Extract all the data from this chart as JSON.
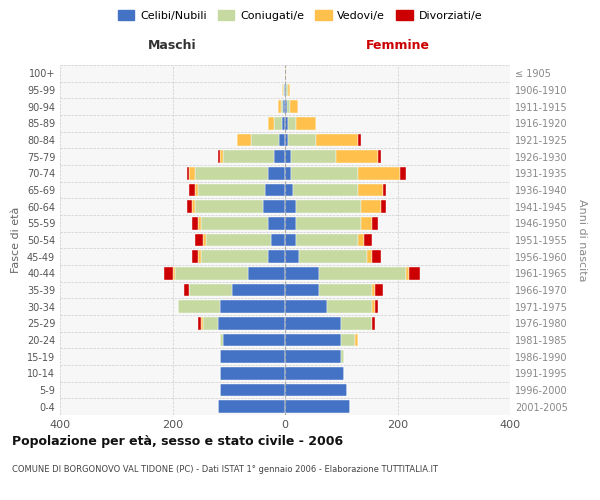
{
  "age_groups": [
    "0-4",
    "5-9",
    "10-14",
    "15-19",
    "20-24",
    "25-29",
    "30-34",
    "35-39",
    "40-44",
    "45-49",
    "50-54",
    "55-59",
    "60-64",
    "65-69",
    "70-74",
    "75-79",
    "80-84",
    "85-89",
    "90-94",
    "95-99",
    "100+"
  ],
  "birth_years": [
    "2001-2005",
    "1996-2000",
    "1991-1995",
    "1986-1990",
    "1981-1985",
    "1976-1980",
    "1971-1975",
    "1966-1970",
    "1961-1965",
    "1956-1960",
    "1951-1955",
    "1946-1950",
    "1941-1945",
    "1936-1940",
    "1931-1935",
    "1926-1930",
    "1921-1925",
    "1916-1920",
    "1911-1915",
    "1906-1910",
    "≤ 1905"
  ],
  "males": {
    "celibi": [
      120,
      115,
      115,
      115,
      110,
      120,
      115,
      95,
      65,
      30,
      25,
      30,
      40,
      35,
      30,
      20,
      10,
      5,
      3,
      2,
      0
    ],
    "coniugati": [
      0,
      0,
      0,
      0,
      5,
      25,
      75,
      75,
      130,
      120,
      115,
      120,
      120,
      120,
      130,
      90,
      50,
      15,
      5,
      2,
      0
    ],
    "vedovi": [
      0,
      0,
      0,
      0,
      0,
      5,
      0,
      0,
      5,
      5,
      5,
      5,
      5,
      5,
      10,
      5,
      25,
      10,
      5,
      2,
      0
    ],
    "divorziati": [
      0,
      0,
      0,
      0,
      0,
      5,
      0,
      10,
      15,
      10,
      15,
      10,
      10,
      10,
      5,
      5,
      0,
      0,
      0,
      0,
      0
    ]
  },
  "females": {
    "nubili": [
      115,
      110,
      105,
      100,
      100,
      100,
      75,
      60,
      60,
      25,
      20,
      20,
      20,
      15,
      10,
      10,
      5,
      5,
      3,
      2,
      0
    ],
    "coniugate": [
      0,
      0,
      0,
      5,
      25,
      55,
      80,
      95,
      155,
      120,
      110,
      115,
      115,
      115,
      120,
      80,
      50,
      15,
      5,
      3,
      0
    ],
    "vedove": [
      0,
      0,
      0,
      0,
      5,
      0,
      5,
      5,
      5,
      10,
      10,
      20,
      35,
      45,
      75,
      75,
      75,
      35,
      15,
      3,
      1
    ],
    "divorziate": [
      0,
      0,
      0,
      0,
      0,
      5,
      5,
      15,
      20,
      15,
      15,
      10,
      10,
      5,
      10,
      5,
      5,
      0,
      0,
      0,
      0
    ]
  },
  "colors": {
    "celibi_nubili": "#4472c4",
    "coniugati_e": "#c5d9a0",
    "vedovi_e": "#ffc04c",
    "divorziati_e": "#cc0000"
  },
  "xlim": 400,
  "title": "Popolazione per età, sesso e stato civile - 2006",
  "subtitle": "COMUNE DI BORGONOVO VAL TIDONE (PC) - Dati ISTAT 1° gennaio 2006 - Elaborazione TUTTITALIA.IT",
  "ylabel_left": "Fasce di età",
  "ylabel_right": "Anni di nascita",
  "legend_labels": [
    "Celibi/Nubili",
    "Coniugati/e",
    "Vedovi/e",
    "Divorziati/e"
  ],
  "maschi_label": "Maschi",
  "femmine_label": "Femmine",
  "maschi_color": "#333333",
  "femmine_color": "#cc0000",
  "bg_color": "#f7f7f7",
  "grid_color": "#cccccc"
}
